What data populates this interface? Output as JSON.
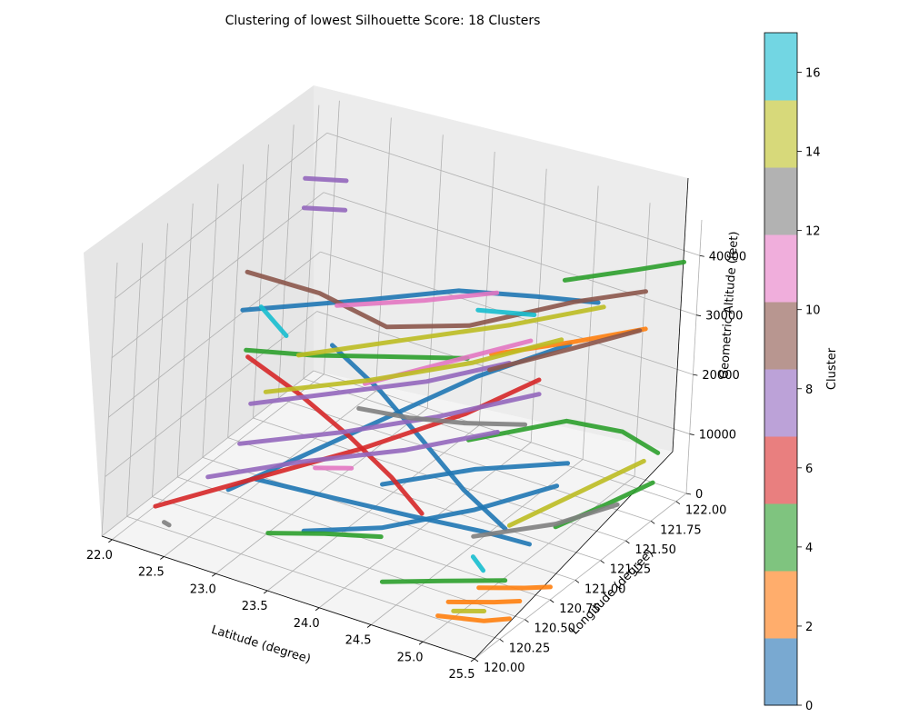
{
  "figure": {
    "background": "#ffffff"
  },
  "chart_data": {
    "type": "line",
    "projection": "3d",
    "title": "Clustering of lowest Silhouette Score: 18 Clusters",
    "xlabel": "Latitude (degree)",
    "ylabel": "Longitude (degree)",
    "zlabel": "Geometric Altitude (feet)",
    "xlim": [
      21.9,
      25.5
    ],
    "ylim": [
      120.0,
      122.1
    ],
    "zlim": [
      0,
      46000
    ],
    "x_ticks": [
      "22.0",
      "22.5",
      "23.0",
      "23.5",
      "24.0",
      "24.5",
      "25.0",
      "25.5"
    ],
    "y_ticks": [
      "120.00",
      "120.25",
      "120.50",
      "120.75",
      "121.00",
      "121.25",
      "121.50",
      "121.75",
      "122.00"
    ],
    "z_ticks": [
      "0",
      "10000",
      "20000",
      "30000",
      "40000"
    ],
    "grid": true,
    "colorbar": {
      "label": "Cluster",
      "range": [
        0,
        17
      ],
      "ticks": [
        "0",
        "2",
        "4",
        "6",
        "8",
        "10",
        "12",
        "14",
        "16"
      ],
      "colors": [
        "#79a9d1",
        "#ffad6c",
        "#7fc47f",
        "#e97f7f",
        "#bca2d8",
        "#b89690",
        "#f0aedc",
        "#b2b2b2",
        "#d7d97a",
        "#72d6e3"
      ]
    },
    "series_colors": [
      "#1f77b4",
      "#ff7f0e",
      "#2ca02c",
      "#d62728",
      "#9467bd",
      "#8c564b",
      "#e377c2",
      "#7f7f7f",
      "#bcbd22",
      "#17becf"
    ],
    "series": [
      {
        "cluster": 0,
        "points": [
          [
            22.2,
            121.95,
            8000
          ],
          [
            22.9,
            121.7,
            7800
          ],
          [
            23.6,
            121.4,
            7500
          ],
          [
            24.3,
            121.1,
            7000
          ],
          [
            24.9,
            120.9,
            6500
          ]
        ]
      },
      {
        "cluster": 0,
        "points": [
          [
            22.6,
            120.8,
            3000
          ],
          [
            23.3,
            120.85,
            3200
          ],
          [
            24.0,
            120.9,
            3500
          ],
          [
            24.6,
            121.0,
            3000
          ],
          [
            25.0,
            121.05,
            2500
          ]
        ]
      },
      {
        "cluster": 0,
        "points": [
          [
            22.2,
            121.0,
            26500
          ],
          [
            23.0,
            121.4,
            27500
          ],
          [
            23.6,
            121.7,
            28500
          ],
          [
            24.2,
            121.85,
            29000
          ],
          [
            24.7,
            121.95,
            29500
          ]
        ]
      },
      {
        "cluster": 0,
        "points": [
          [
            22.8,
            120.3,
            9000
          ],
          [
            23.4,
            120.9,
            14000
          ],
          [
            24.0,
            121.5,
            19000
          ],
          [
            24.5,
            121.9,
            22000
          ]
        ]
      },
      {
        "cluster": 0,
        "points": [
          [
            23.4,
            120.45,
            3500
          ],
          [
            24.0,
            120.6,
            5500
          ],
          [
            24.6,
            120.9,
            8000
          ],
          [
            25.0,
            121.3,
            9000
          ]
        ]
      },
      {
        "cluster": 0,
        "points": [
          [
            23.8,
            120.8,
            9000
          ],
          [
            24.4,
            121.1,
            11000
          ],
          [
            25.0,
            121.4,
            11500
          ]
        ]
      },
      {
        "cluster": 1,
        "points": [
          [
            24.4,
            121.2,
            29000
          ],
          [
            24.9,
            121.5,
            30000
          ],
          [
            25.3,
            121.8,
            30500
          ]
        ]
      },
      {
        "cluster": 1,
        "points": [
          [
            24.9,
            120.35,
            1500
          ],
          [
            25.2,
            120.5,
            1200
          ],
          [
            25.35,
            120.6,
            900
          ]
        ]
      },
      {
        "cluster": 1,
        "points": [
          [
            24.9,
            120.25,
            500
          ],
          [
            25.25,
            120.35,
            300
          ],
          [
            25.4,
            120.45,
            200
          ]
        ]
      },
      {
        "cluster": 1,
        "points": [
          [
            25.0,
            120.55,
            1800
          ],
          [
            25.3,
            120.7,
            1500
          ],
          [
            25.45,
            120.8,
            1200
          ]
        ]
      },
      {
        "cluster": 2,
        "points": [
          [
            22.3,
            120.95,
            21000
          ],
          [
            22.8,
            121.1,
            21000
          ],
          [
            23.3,
            121.3,
            21000
          ],
          [
            23.9,
            121.5,
            21500
          ]
        ]
      },
      {
        "cluster": 2,
        "points": [
          [
            23.2,
            120.3,
            4000
          ],
          [
            23.6,
            120.45,
            4200
          ],
          [
            24.0,
            120.6,
            4000
          ]
        ]
      },
      {
        "cluster": 2,
        "points": [
          [
            24.4,
            120.2,
            4000
          ],
          [
            24.8,
            120.4,
            3800
          ],
          [
            25.2,
            120.6,
            3500
          ]
        ]
      },
      {
        "cluster": 2,
        "points": [
          [
            24.6,
            121.7,
            36000
          ],
          [
            25.1,
            121.9,
            38000
          ],
          [
            25.4,
            122.05,
            39000
          ]
        ]
      },
      {
        "cluster": 2,
        "points": [
          [
            24.0,
            121.45,
            9000
          ],
          [
            24.6,
            121.8,
            11000
          ],
          [
            25.0,
            121.95,
            9500
          ],
          [
            25.3,
            122.0,
            7000
          ]
        ]
      },
      {
        "cluster": 2,
        "points": [
          [
            25.1,
            121.2,
            4000
          ],
          [
            25.3,
            121.5,
            5000
          ],
          [
            25.45,
            121.8,
            5500
          ]
        ]
      },
      {
        "cluster": 3,
        "points": [
          [
            22.0,
            121.3,
            13500
          ],
          [
            22.6,
            121.2,
            12000
          ],
          [
            23.2,
            121.1,
            9500
          ],
          [
            23.7,
            121.0,
            7000
          ],
          [
            24.1,
            120.9,
            4500
          ]
        ]
      },
      {
        "cluster": 3,
        "points": [
          [
            22.3,
            120.1,
            6000
          ],
          [
            22.9,
            120.5,
            9000
          ],
          [
            23.5,
            120.9,
            12000
          ],
          [
            24.1,
            121.3,
            16000
          ],
          [
            24.5,
            121.6,
            20000
          ]
        ]
      },
      {
        "cluster": 4,
        "points": [
          [
            21.9,
            121.9,
            35000
          ],
          [
            22.2,
            122.0,
            35000
          ]
        ]
      },
      {
        "cluster": 4,
        "points": [
          [
            21.95,
            121.85,
            31000
          ],
          [
            22.25,
            121.95,
            31000
          ]
        ]
      },
      {
        "cluster": 4,
        "points": [
          [
            22.6,
            120.7,
            17000
          ],
          [
            23.2,
            120.95,
            19000
          ],
          [
            23.8,
            121.2,
            21000
          ],
          [
            24.3,
            121.5,
            23000
          ]
        ]
      },
      {
        "cluster": 4,
        "points": [
          [
            22.7,
            120.5,
            13500
          ],
          [
            23.4,
            120.8,
            15500
          ],
          [
            24.0,
            121.1,
            17500
          ],
          [
            24.6,
            121.5,
            19500
          ]
        ]
      },
      {
        "cluster": 4,
        "points": [
          [
            22.6,
            120.3,
            10000
          ],
          [
            23.2,
            120.6,
            12000
          ],
          [
            23.9,
            120.9,
            14000
          ],
          [
            24.5,
            121.2,
            16500
          ]
        ]
      },
      {
        "cluster": 5,
        "points": [
          [
            21.95,
            121.3,
            27500
          ],
          [
            22.6,
            121.35,
            27000
          ],
          [
            23.3,
            121.3,
            26000
          ],
          [
            23.9,
            121.5,
            27000
          ],
          [
            24.6,
            121.8,
            31000
          ],
          [
            25.1,
            122.0,
            33000
          ]
        ]
      },
      {
        "cluster": 5,
        "points": [
          [
            24.3,
            121.3,
            24500
          ],
          [
            24.8,
            121.6,
            27000
          ],
          [
            25.2,
            121.85,
            29000
          ]
        ]
      },
      {
        "cluster": 6,
        "points": [
          [
            23.0,
            121.1,
            30500
          ],
          [
            23.6,
            121.35,
            31500
          ],
          [
            24.1,
            121.55,
            33000
          ]
        ]
      },
      {
        "cluster": 6,
        "points": [
          [
            23.4,
            121.0,
            21000
          ],
          [
            23.9,
            121.3,
            23500
          ],
          [
            24.4,
            121.6,
            26000
          ]
        ]
      },
      {
        "cluster": 6,
        "points": [
          [
            23.2,
            120.75,
            9000
          ],
          [
            23.5,
            120.8,
            10000
          ]
        ]
      },
      {
        "cluster": 7,
        "points": [
          [
            22.3,
            120.2,
            2000
          ],
          [
            22.35,
            120.2,
            1800
          ]
        ]
      },
      {
        "cluster": 7,
        "points": [
          [
            23.4,
            120.95,
            17500
          ],
          [
            23.7,
            121.15,
            15000
          ],
          [
            24.0,
            121.4,
            12500
          ],
          [
            24.3,
            121.7,
            10000
          ]
        ]
      },
      {
        "cluster": 7,
        "points": [
          [
            24.6,
            120.9,
            3500
          ],
          [
            25.1,
            121.2,
            4500
          ],
          [
            25.4,
            121.5,
            5500
          ]
        ]
      },
      {
        "cluster": 8,
        "points": [
          [
            22.6,
            120.85,
            17000
          ],
          [
            23.3,
            121.15,
            19000
          ],
          [
            24.0,
            121.45,
            22000
          ],
          [
            24.6,
            121.7,
            26000
          ]
        ]
      },
      {
        "cluster": 8,
        "points": [
          [
            22.8,
            120.95,
            23000
          ],
          [
            23.5,
            121.3,
            25000
          ],
          [
            24.2,
            121.6,
            27500
          ],
          [
            24.8,
            121.9,
            30000
          ]
        ]
      },
      {
        "cluster": 8,
        "points": [
          [
            24.8,
            121.05,
            4500
          ],
          [
            25.1,
            121.4,
            7000
          ],
          [
            25.4,
            121.75,
            9500
          ]
        ]
      },
      {
        "cluster": 8,
        "points": [
          [
            25.0,
            120.3,
            1200
          ],
          [
            25.2,
            120.4,
            1000
          ]
        ]
      },
      {
        "cluster": 9,
        "points": [
          [
            22.1,
            121.3,
            22500
          ],
          [
            22.4,
            121.25,
            20000
          ]
        ]
      },
      {
        "cluster": 9,
        "points": [
          [
            23.7,
            121.8,
            24500
          ],
          [
            24.1,
            121.95,
            24000
          ]
        ]
      },
      {
        "cluster": 9,
        "points": [
          [
            24.7,
            120.8,
            2000
          ],
          [
            24.85,
            120.75,
            1200
          ]
        ]
      }
    ]
  }
}
